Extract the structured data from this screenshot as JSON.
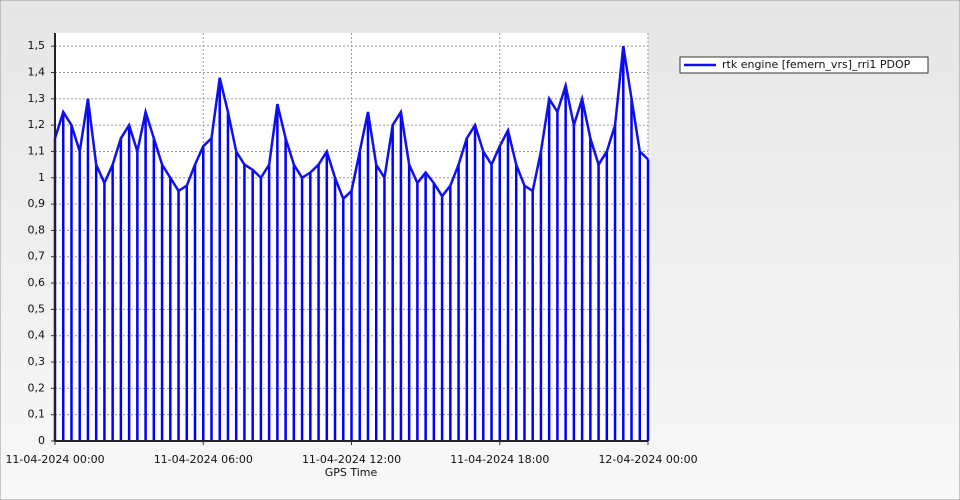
{
  "chart_data": {
    "type": "line",
    "xlabel": "GPS Time",
    "drop_lines": true,
    "grid": true,
    "legend": "top-right",
    "color": "#0000ff",
    "series": [
      {
        "name": "rtk engine [femern_vrs]_rri1 PDOP",
        "color": "#1010ee",
        "x": [
          "11-04-2024 00:00",
          "11-04-2024 00:20",
          "11-04-2024 00:40",
          "11-04-2024 01:00",
          "11-04-2024 01:20",
          "11-04-2024 01:40",
          "11-04-2024 02:00",
          "11-04-2024 02:20",
          "11-04-2024 02:40",
          "11-04-2024 03:00",
          "11-04-2024 03:20",
          "11-04-2024 03:40",
          "11-04-2024 04:00",
          "11-04-2024 04:20",
          "11-04-2024 04:40",
          "11-04-2024 05:00",
          "11-04-2024 05:20",
          "11-04-2024 05:40",
          "11-04-2024 06:00",
          "11-04-2024 06:20",
          "11-04-2024 06:40",
          "11-04-2024 07:00",
          "11-04-2024 07:20",
          "11-04-2024 07:40",
          "11-04-2024 08:00",
          "11-04-2024 08:20",
          "11-04-2024 08:40",
          "11-04-2024 09:00",
          "11-04-2024 09:20",
          "11-04-2024 09:40",
          "11-04-2024 10:00",
          "11-04-2024 10:20",
          "11-04-2024 10:40",
          "11-04-2024 11:00",
          "11-04-2024 11:20",
          "11-04-2024 11:40",
          "11-04-2024 12:00",
          "11-04-2024 12:20",
          "11-04-2024 12:40",
          "11-04-2024 13:00",
          "11-04-2024 13:20",
          "11-04-2024 13:40",
          "11-04-2024 14:00",
          "11-04-2024 14:20",
          "11-04-2024 14:40",
          "11-04-2024 15:00",
          "11-04-2024 15:20",
          "11-04-2024 15:40",
          "11-04-2024 16:00",
          "11-04-2024 16:20",
          "11-04-2024 16:40",
          "11-04-2024 17:00",
          "11-04-2024 17:20",
          "11-04-2024 17:40",
          "11-04-2024 18:00",
          "11-04-2024 18:20",
          "11-04-2024 18:40",
          "11-04-2024 19:00",
          "11-04-2024 19:20",
          "11-04-2024 19:40",
          "11-04-2024 20:00",
          "11-04-2024 20:20",
          "11-04-2024 20:40",
          "11-04-2024 21:00",
          "11-04-2024 21:20",
          "11-04-2024 21:40",
          "11-04-2024 22:00",
          "11-04-2024 22:20",
          "11-04-2024 22:40",
          "11-04-2024 23:00",
          "11-04-2024 23:20",
          "11-04-2024 23:40",
          "12-04-2024 00:00"
        ],
        "values": [
          1.15,
          1.25,
          1.2,
          1.1,
          1.3,
          1.05,
          0.98,
          1.05,
          1.15,
          1.2,
          1.1,
          1.25,
          1.15,
          1.05,
          1.0,
          0.95,
          0.97,
          1.05,
          1.12,
          1.15,
          1.38,
          1.25,
          1.1,
          1.05,
          1.03,
          1.0,
          1.05,
          1.28,
          1.15,
          1.05,
          1.0,
          1.02,
          1.05,
          1.1,
          1.0,
          0.92,
          0.95,
          1.1,
          1.25,
          1.05,
          1.0,
          1.2,
          1.25,
          1.05,
          0.98,
          1.02,
          0.98,
          0.93,
          0.97,
          1.05,
          1.15,
          1.2,
          1.1,
          1.05,
          1.12,
          1.18,
          1.05,
          0.97,
          0.95,
          1.1,
          1.3,
          1.25,
          1.35,
          1.2,
          1.3,
          1.15,
          1.05,
          1.1,
          1.2,
          1.5,
          1.3,
          1.1,
          1.07
        ]
      }
    ],
    "xlim": [
      "11-04-2024 00:00",
      "12-04-2024 00:00"
    ],
    "xticks": [
      "11-04-2024 00:00",
      "11-04-2024 06:00",
      "11-04-2024 12:00",
      "11-04-2024 18:00",
      "12-04-2024 00:00"
    ],
    "ylim": [
      0,
      1.55
    ],
    "yticks": [
      0,
      {
        "value": 0.1,
        "label": "0,1"
      },
      {
        "value": 0.2,
        "label": "0,2"
      },
      {
        "value": 0.3,
        "label": "0,3"
      },
      {
        "value": 0.4,
        "label": "0,4"
      },
      {
        "value": 0.5,
        "label": "0,5"
      },
      {
        "value": 0.6,
        "label": "0,6"
      },
      {
        "value": 0.7,
        "label": "0,7"
      },
      {
        "value": 0.8,
        "label": "0,8"
      },
      {
        "value": 0.9,
        "label": "0,9"
      },
      1,
      {
        "value": 1.1,
        "label": "1,1"
      },
      {
        "value": 1.2,
        "label": "1,2"
      },
      {
        "value": 1.3,
        "label": "1,3"
      },
      {
        "value": 1.4,
        "label": "1,4"
      },
      {
        "value": 1.5,
        "label": "1,5"
      }
    ]
  }
}
